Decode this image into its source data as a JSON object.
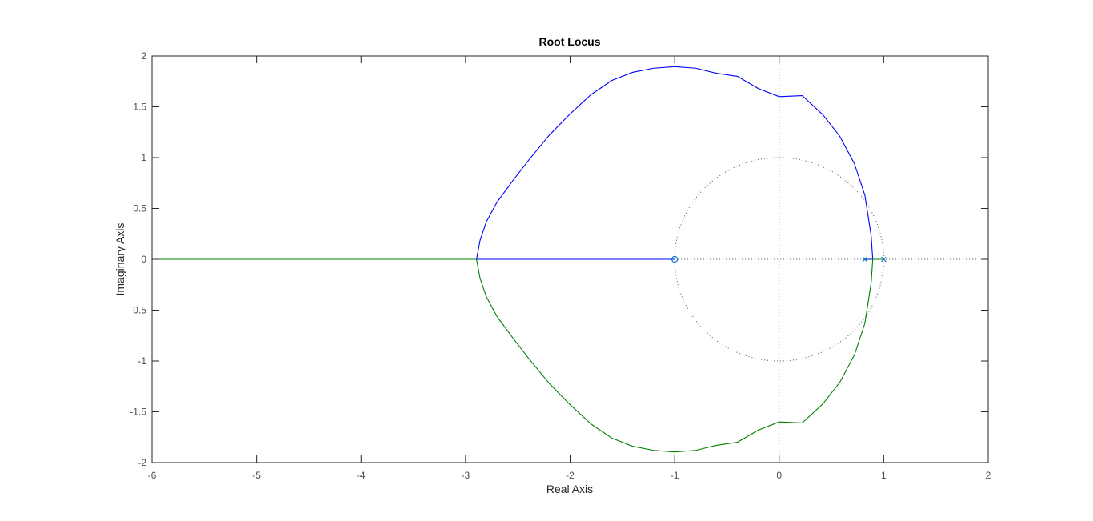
{
  "chart_data": {
    "type": "line",
    "title": "Root Locus",
    "xlabel": "Real Axis",
    "ylabel": "Imaginary Axis",
    "xlim": [
      -6,
      2
    ],
    "ylim": [
      -2,
      2
    ],
    "xticks": [
      -6,
      -5,
      -4,
      -3,
      -2,
      -1,
      0,
      1,
      2
    ],
    "yticks": [
      -2,
      -1.5,
      -1,
      -0.5,
      0,
      0.5,
      1,
      1.5,
      2
    ],
    "xtick_labels": [
      "-6",
      "-5",
      "-4",
      "-3",
      "-2",
      "-1",
      "0",
      "1",
      "2"
    ],
    "ytick_labels": [
      "-2",
      "-1.5",
      "-1",
      "-0.5",
      "0",
      "0.5",
      "1",
      "1.5",
      "2"
    ],
    "grid": false,
    "colors": {
      "branch_1": "#0000ff",
      "branch_2": "#008000",
      "markers": "#0072bd",
      "reference": "#555555",
      "axes": "#262626",
      "tick_text": "#4d4d4d"
    },
    "poles": [
      {
        "re": 0.82,
        "im": 0
      },
      {
        "re": 1.0,
        "im": 0
      }
    ],
    "zeros": [
      {
        "re": -1.0,
        "im": 0
      }
    ],
    "locus_circle": {
      "center_re": -1.0,
      "center_im": 0,
      "radius": 1.895
    },
    "breakaway_points": [
      -2.895,
      0.895
    ],
    "series": [
      {
        "x": [
          0.82,
          0.895,
          0.88,
          0.82,
          0.72,
          0.58,
          0.42,
          0.22,
          0.0,
          -0.2,
          -0.4,
          -0.6,
          -0.8,
          -1.0,
          -1.2,
          -1.4,
          -1.6,
          -1.8,
          -2.0,
          -2.2,
          -2.4,
          -2.55,
          -2.7,
          -2.8,
          -2.86,
          -2.895,
          -2.895,
          -1.0
        ],
        "y": [
          0,
          0,
          0.23,
          0.63,
          0.94,
          1.21,
          1.42,
          1.61,
          1.6,
          1.68,
          1.8,
          1.83,
          1.88,
          1.895,
          1.88,
          1.84,
          1.76,
          1.62,
          1.43,
          1.22,
          0.97,
          0.77,
          0.56,
          0.37,
          0.19,
          0.0,
          0.0,
          0.0
        ]
      },
      {
        "x": [
          1.0,
          0.895,
          0.88,
          0.82,
          0.72,
          0.58,
          0.42,
          0.22,
          0.0,
          -0.2,
          -0.4,
          -0.6,
          -0.8,
          -1.0,
          -1.2,
          -1.4,
          -1.6,
          -1.8,
          -2.0,
          -2.2,
          -2.4,
          -2.55,
          -2.7,
          -2.8,
          -2.86,
          -2.895,
          -6.0
        ],
        "y": [
          0,
          0,
          -0.23,
          -0.63,
          -0.94,
          -1.21,
          -1.42,
          -1.61,
          -1.6,
          -1.68,
          -1.8,
          -1.83,
          -1.88,
          -1.895,
          -1.88,
          -1.84,
          -1.76,
          -1.62,
          -1.43,
          -1.22,
          -0.97,
          -0.77,
          -0.56,
          -0.37,
          -0.19,
          0.0,
          0.0
        ]
      }
    ]
  }
}
